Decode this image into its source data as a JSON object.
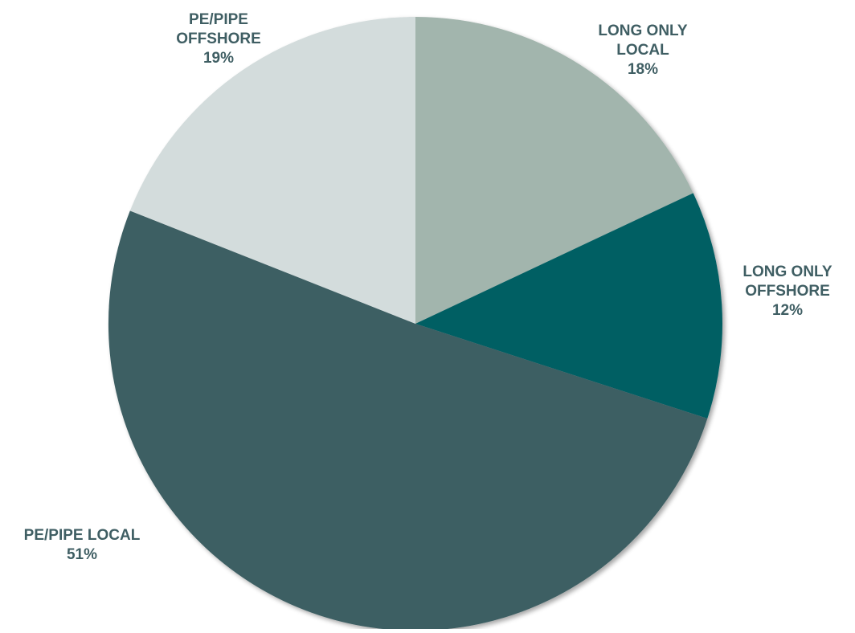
{
  "chart_data": {
    "type": "pie",
    "title": "",
    "slices": [
      {
        "label_lines": [
          "LONG ONLY",
          "LOCAL"
        ],
        "percent_label": "18%",
        "value": 18,
        "color": "#a2b5ad"
      },
      {
        "label_lines": [
          "LONG ONLY",
          "OFFSHORE"
        ],
        "percent_label": "12%",
        "value": 12,
        "color": "#005e63"
      },
      {
        "label_lines": [
          "PE/PIPE LOCAL"
        ],
        "percent_label": "51%",
        "value": 51,
        "color": "#3d5e63"
      },
      {
        "label_lines": [
          "PE/PIPE",
          "OFFSHORE"
        ],
        "percent_label": "19%",
        "value": 19,
        "color": "#d3dcdc"
      }
    ],
    "legend": "none",
    "label_color": "#3f5e63",
    "start_angle_deg": 0,
    "direction": "clockwise"
  }
}
